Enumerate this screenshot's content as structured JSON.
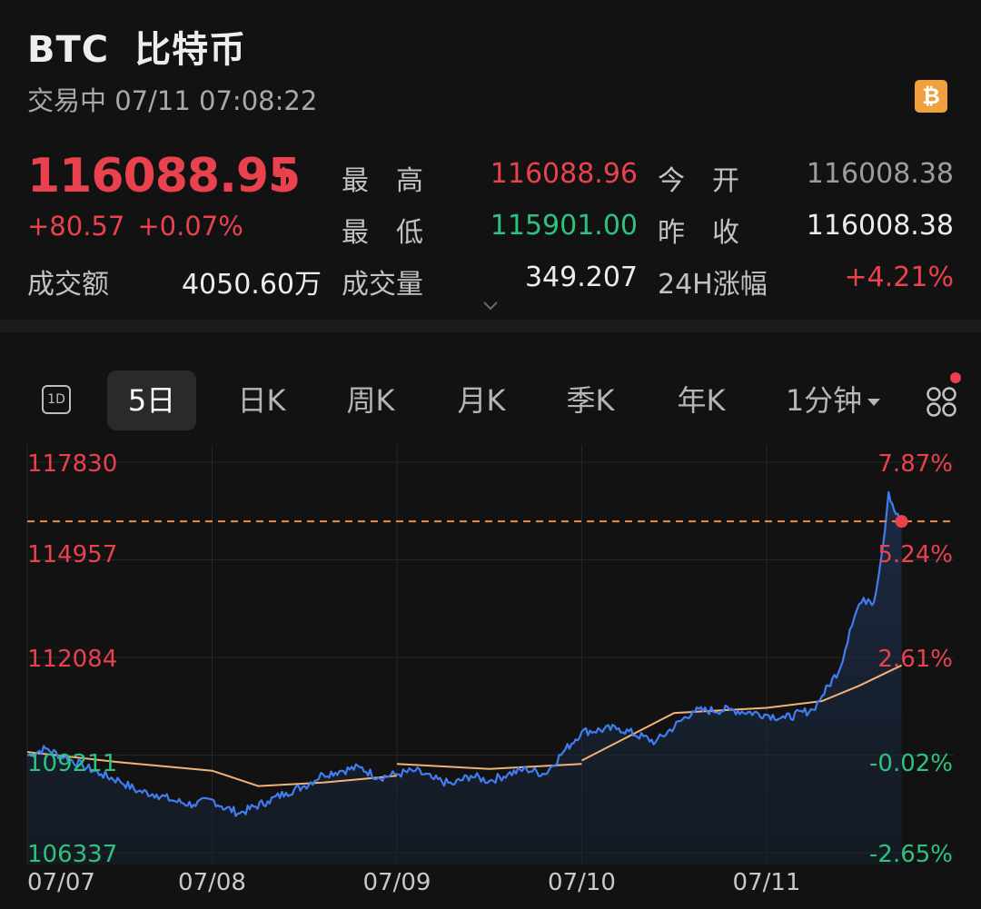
{
  "header": {
    "symbol": "BTC",
    "name": "比特币",
    "status": "交易中",
    "datetime": "07/11 07:08:22",
    "badge_icon": "bitcoin-badge-icon",
    "badge_glyph": "₿"
  },
  "quote": {
    "price": "116088.95",
    "direction": "up",
    "change": "+80.57",
    "change_pct": "+0.07%",
    "turnover_label": "成交额",
    "turnover_value": "4050.60万"
  },
  "stats": {
    "high_label": "最　高",
    "high_value": "116088.96",
    "open_label": "今　开",
    "open_value": "116008.38",
    "low_label": "最　低",
    "low_value": "115901.00",
    "prev_close_label": "昨　收",
    "prev_close_value": "116008.38",
    "volume_label": "成交量",
    "volume_value": "349.207",
    "change24h_label": "24H涨幅",
    "change24h_value": "+4.21%"
  },
  "tabs": {
    "icon_1d": "1D",
    "items": [
      "5日",
      "日K",
      "周K",
      "月K",
      "季K",
      "年K",
      "1分钟"
    ],
    "active_index": 0
  },
  "colors": {
    "up": "#e9414d",
    "down": "#2ec27e",
    "price_line": "#3f7df0",
    "avg_line": "#f2b37a",
    "current_line": "#f08a4b"
  },
  "chart_data": {
    "type": "line",
    "x_ticks": [
      "07/07",
      "07/08",
      "07/09",
      "07/10",
      "07/11"
    ],
    "y_ticks_left": [
      "117830",
      "114957",
      "112084",
      "109211",
      "106337"
    ],
    "y_ticks_right": [
      "7.87%",
      "5.24%",
      "2.61%",
      "-0.02%",
      "-2.65%"
    ],
    "ylim": [
      106337,
      117830
    ],
    "current_price": 116088.95,
    "series": [
      {
        "name": "price",
        "values": [
          [
            0.0,
            109200
          ],
          [
            0.1,
            109400
          ],
          [
            0.2,
            109150
          ],
          [
            0.3,
            108900
          ],
          [
            0.4,
            108650
          ],
          [
            0.5,
            108450
          ],
          [
            0.6,
            108150
          ],
          [
            0.7,
            108050
          ],
          [
            0.8,
            107850
          ],
          [
            0.9,
            107750
          ],
          [
            1.0,
            107900
          ],
          [
            1.05,
            107700
          ],
          [
            1.15,
            107500
          ],
          [
            1.3,
            107850
          ],
          [
            1.4,
            108100
          ],
          [
            1.5,
            108300
          ],
          [
            1.6,
            108650
          ],
          [
            1.7,
            108750
          ],
          [
            1.8,
            108850
          ],
          [
            1.9,
            108550
          ],
          [
            2.0,
            108650
          ],
          [
            2.1,
            108750
          ],
          [
            2.2,
            108500
          ],
          [
            2.3,
            108350
          ],
          [
            2.4,
            108600
          ],
          [
            2.5,
            108450
          ],
          [
            2.6,
            108650
          ],
          [
            2.7,
            108800
          ],
          [
            2.8,
            108650
          ],
          [
            2.9,
            109300
          ],
          [
            3.0,
            109900
          ],
          [
            3.2,
            110000
          ],
          [
            3.4,
            109600
          ],
          [
            3.6,
            110500
          ],
          [
            3.8,
            110550
          ],
          [
            4.0,
            110400
          ],
          [
            4.1,
            110300
          ],
          [
            4.25,
            110550
          ],
          [
            4.3,
            110950
          ],
          [
            4.4,
            111800
          ],
          [
            4.45,
            112900
          ],
          [
            4.5,
            113650
          ],
          [
            4.55,
            113800
          ],
          [
            4.58,
            113700
          ],
          [
            4.63,
            115400
          ],
          [
            4.66,
            116950
          ],
          [
            4.7,
            116300
          ],
          [
            4.73,
            116080
          ]
        ]
      },
      {
        "name": "avg",
        "values": [
          [
            0.0,
            109300
          ],
          [
            0.5,
            109000
          ],
          [
            1.0,
            108750
          ],
          [
            1.25,
            108300
          ],
          [
            1.6,
            108400
          ],
          [
            2.0,
            108600
          ],
          [
            2.0,
            108950
          ],
          [
            2.5,
            108800
          ],
          [
            3.0,
            108950
          ],
          [
            3.0,
            109050
          ],
          [
            3.5,
            110450
          ],
          [
            4.0,
            110600
          ],
          [
            4.3,
            110800
          ],
          [
            4.5,
            111250
          ],
          [
            4.73,
            111850
          ]
        ]
      }
    ]
  }
}
